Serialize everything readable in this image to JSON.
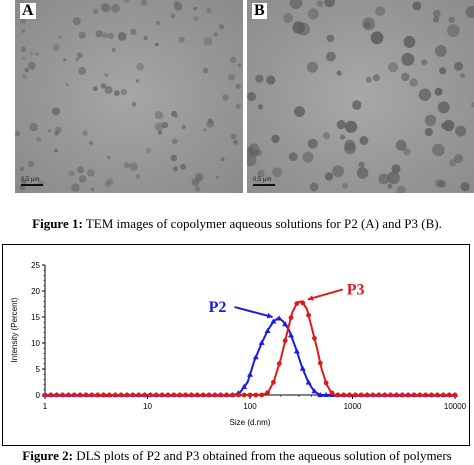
{
  "figure1": {
    "panel_a_label": "A",
    "panel_b_label": "B",
    "scale_text": "0.5 μm",
    "caption_bold": "Figure 1:",
    "caption_text": " TEM images of copolymer aqueous solutions for P2 (A) and P3 (B)."
  },
  "figure2": {
    "caption_bold": "Figure 2:",
    "caption_text": " DLS plots of P2 and P3 obtained from the aqueous solution of polymers"
  },
  "chart_data": {
    "type": "line",
    "xlabel": "Size (d.nm)",
    "ylabel": "Intensity (Percent)",
    "xscale": "log",
    "xlim": [
      1,
      10000
    ],
    "ylim": [
      0,
      25
    ],
    "x_ticks": [
      "1",
      "10",
      "100",
      "1000",
      "10000"
    ],
    "y_ticks": [
      "0",
      "5",
      "10",
      "15",
      "20",
      "25"
    ],
    "grid": false,
    "series": [
      {
        "name": "P2",
        "color": "#1a1ae0",
        "marker": "triangle",
        "x": [
          1,
          70,
          80,
          95,
          110,
          130,
          150,
          170,
          190,
          210,
          240,
          280,
          320,
          370,
          420,
          480,
          10000
        ],
        "y": [
          0,
          0,
          0.5,
          2.5,
          6.5,
          10,
          12.5,
          14.2,
          14.8,
          14.2,
          12.5,
          9,
          5.5,
          2.5,
          0.8,
          0,
          0
        ]
      },
      {
        "name": "P3",
        "color": "#e01a1a",
        "marker": "circle",
        "x": [
          1,
          130,
          150,
          170,
          200,
          230,
          260,
          290,
          320,
          360,
          400,
          450,
          500,
          560,
          620,
          680,
          10000
        ],
        "y": [
          0,
          0,
          0.5,
          2.5,
          7,
          12,
          16,
          17.8,
          18,
          16.5,
          13,
          9,
          5,
          2,
          0.5,
          0,
          0
        ]
      }
    ]
  }
}
